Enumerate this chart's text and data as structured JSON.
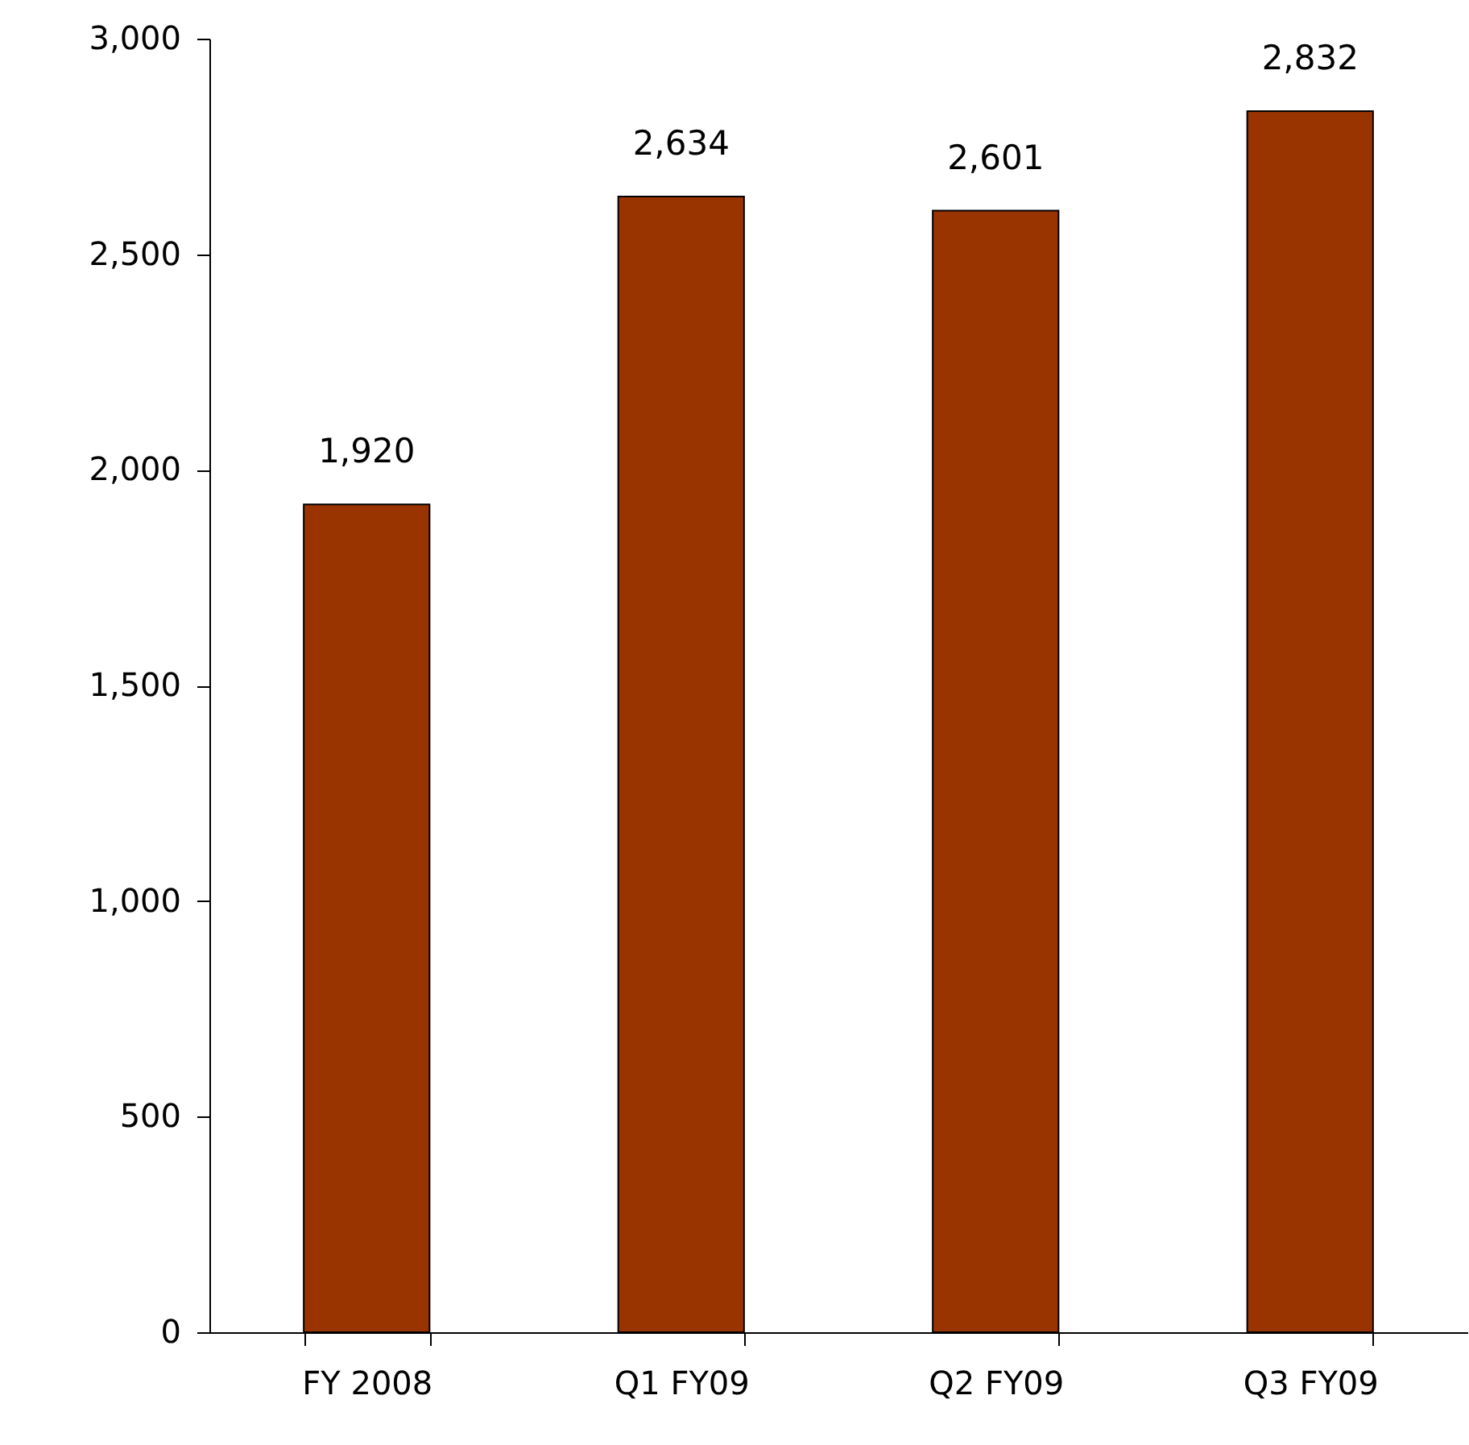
{
  "chart_data": {
    "type": "bar",
    "categories": [
      "FY 2008",
      "Q1 FY09",
      "Q2 FY09",
      "Q3 FY09"
    ],
    "values": [
      1920,
      2634,
      2601,
      2832
    ],
    "value_labels": [
      "1,920",
      "2,634",
      "2,601",
      "2,832"
    ],
    "color": "#993300",
    "ylim": [
      0,
      3000
    ],
    "yticks": [
      0,
      500,
      {
        "value": 1000,
        "label": "1,000"
      },
      {
        "value": 1500,
        "label": "1,500"
      },
      {
        "value": 2000,
        "label": "2,000"
      },
      {
        "value": 2500,
        "label": "2,500"
      },
      {
        "value": 3000,
        "label": "3,000"
      }
    ],
    "grid": false
  }
}
